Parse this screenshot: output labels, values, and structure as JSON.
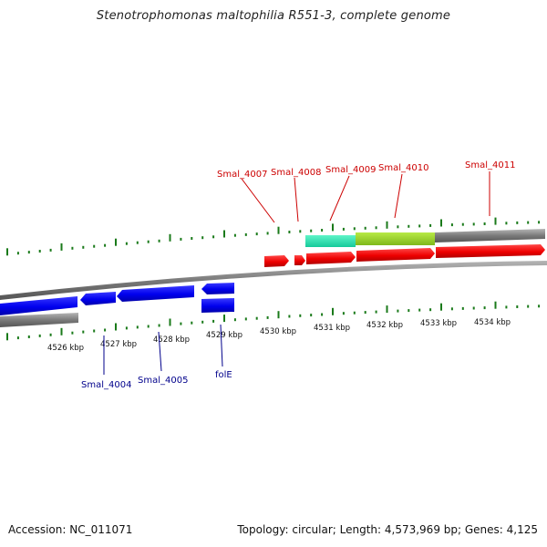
{
  "title": "Stenotrophomonas maltophilia R551-3, complete genome",
  "footer": {
    "accession": "Accession: NC_011071",
    "summary": "Topology: circular; Length: 4,573,969 bp; Genes: 4,125"
  },
  "colors": {
    "forward_gene": "#ee0000",
    "reverse_gene": "#0000ee",
    "forward_label": "#cc0000",
    "reverse_label": "#00008b",
    "tick": "#1a7a1a",
    "backbone": "#808080",
    "band_teal": "#2ee8b0",
    "band_green": "#9bd52a"
  },
  "axis": {
    "unit": "kbp",
    "labels": [
      "4526 kbp",
      "4527 kbp",
      "4528 kbp",
      "4529 kbp",
      "4530 kbp",
      "4531 kbp",
      "4532 kbp",
      "4533 kbp",
      "4534 kbp"
    ]
  },
  "forward_genes": [
    "Smal_4007",
    "Smal_4008",
    "Smal_4009",
    "Smal_4010",
    "Smal_4011"
  ],
  "reverse_genes": [
    "Smal_4004",
    "Smal_4005",
    "folE"
  ]
}
